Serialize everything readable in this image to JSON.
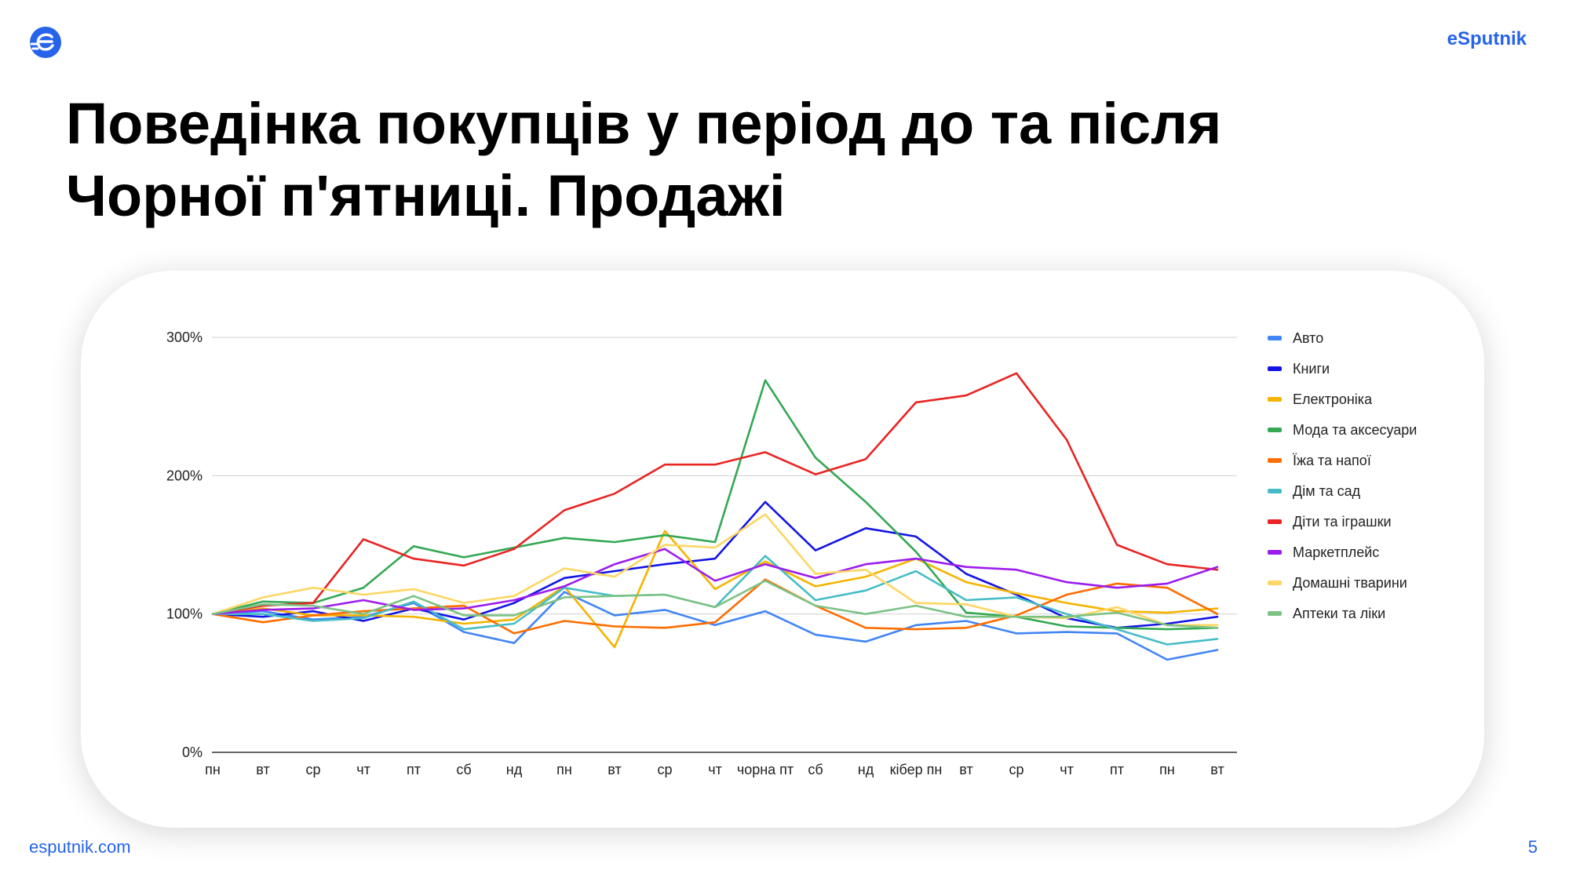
{
  "header": {
    "brand": "eSputnik",
    "logo_icon": "esputnik-logo-icon",
    "accent_color": "#2563eb"
  },
  "title": "Поведінка покупців у період до та після Чорної п'ятниці. Продажі",
  "footer": {
    "url": "esputnik.com",
    "page_number": "5"
  },
  "chart_data": {
    "type": "line",
    "title": "",
    "xlabel": "",
    "ylabel": "",
    "ylim": [
      0,
      300
    ],
    "y_unit": "%",
    "y_ticks": [
      "0%",
      "100%",
      "200%",
      "300%"
    ],
    "grid": true,
    "legend_position": "right",
    "categories": [
      "пн",
      "вт",
      "ср",
      "чт",
      "пт",
      "сб",
      "нд",
      "пн",
      "вт",
      "ср",
      "чт",
      "чорна пт",
      "сб",
      "нд",
      "кібер пн",
      "вт",
      "ср",
      "чт",
      "пт",
      "пн",
      "вт"
    ],
    "series": [
      {
        "name": "Авто",
        "color": "#4285f4",
        "values": [
          100,
          102,
          96,
          98,
          108,
          87,
          79,
          116,
          99,
          103,
          92,
          102,
          85,
          80,
          92,
          95,
          86,
          87,
          86,
          67,
          74
        ]
      },
      {
        "name": "Книги",
        "color": "#1414e6",
        "values": [
          100,
          98,
          102,
          95,
          104,
          96,
          108,
          126,
          131,
          136,
          140,
          181,
          146,
          162,
          156,
          129,
          114,
          97,
          90,
          93,
          98
        ]
      },
      {
        "name": "Електроніка",
        "color": "#f4b400",
        "values": [
          100,
          104,
          99,
          99,
          98,
          93,
          96,
          120,
          76,
          160,
          118,
          138,
          120,
          127,
          140,
          123,
          115,
          108,
          102,
          101,
          104
        ]
      },
      {
        "name": "Мода та аксесуари",
        "color": "#34a853",
        "values": [
          100,
          109,
          108,
          119,
          149,
          141,
          148,
          155,
          152,
          157,
          152,
          269,
          213,
          181,
          145,
          101,
          98,
          91,
          90,
          89,
          90
        ]
      },
      {
        "name": "Їжа та напої",
        "color": "#ff6d00",
        "values": [
          100,
          94,
          99,
          102,
          104,
          106,
          86,
          95,
          91,
          90,
          94,
          125,
          106,
          90,
          89,
          90,
          99,
          114,
          122,
          119,
          100
        ]
      },
      {
        "name": "Дім та сад",
        "color": "#46bdc6",
        "values": [
          100,
          100,
          95,
          97,
          109,
          89,
          93,
          119,
          113,
          114,
          105,
          142,
          110,
          117,
          131,
          110,
          112,
          100,
          89,
          78,
          82
        ]
      },
      {
        "name": "Діти та іграшки",
        "color": "#ea2323",
        "values": [
          100,
          106,
          108,
          154,
          140,
          135,
          147,
          175,
          187,
          208,
          208,
          217,
          201,
          212,
          253,
          258,
          274,
          226,
          150,
          136,
          132
        ]
      },
      {
        "name": "Маркетплейс",
        "color": "#9c1ced",
        "values": [
          100,
          103,
          104,
          110,
          103,
          104,
          110,
          120,
          136,
          147,
          124,
          136,
          126,
          136,
          140,
          134,
          132,
          123,
          119,
          122,
          134
        ]
      },
      {
        "name": "Домашні тварини",
        "color": "#fdd663",
        "values": [
          100,
          112,
          119,
          114,
          118,
          108,
          113,
          133,
          127,
          150,
          148,
          172,
          129,
          132,
          108,
          107,
          98,
          97,
          105,
          92,
          92
        ]
      },
      {
        "name": "Аптеки та ліки",
        "color": "#7cc285",
        "values": [
          100,
          107,
          106,
          100,
          113,
          99,
          99,
          112,
          113,
          114,
          105,
          124,
          106,
          100,
          106,
          98,
          98,
          98,
          101,
          92,
          90
        ]
      }
    ]
  }
}
